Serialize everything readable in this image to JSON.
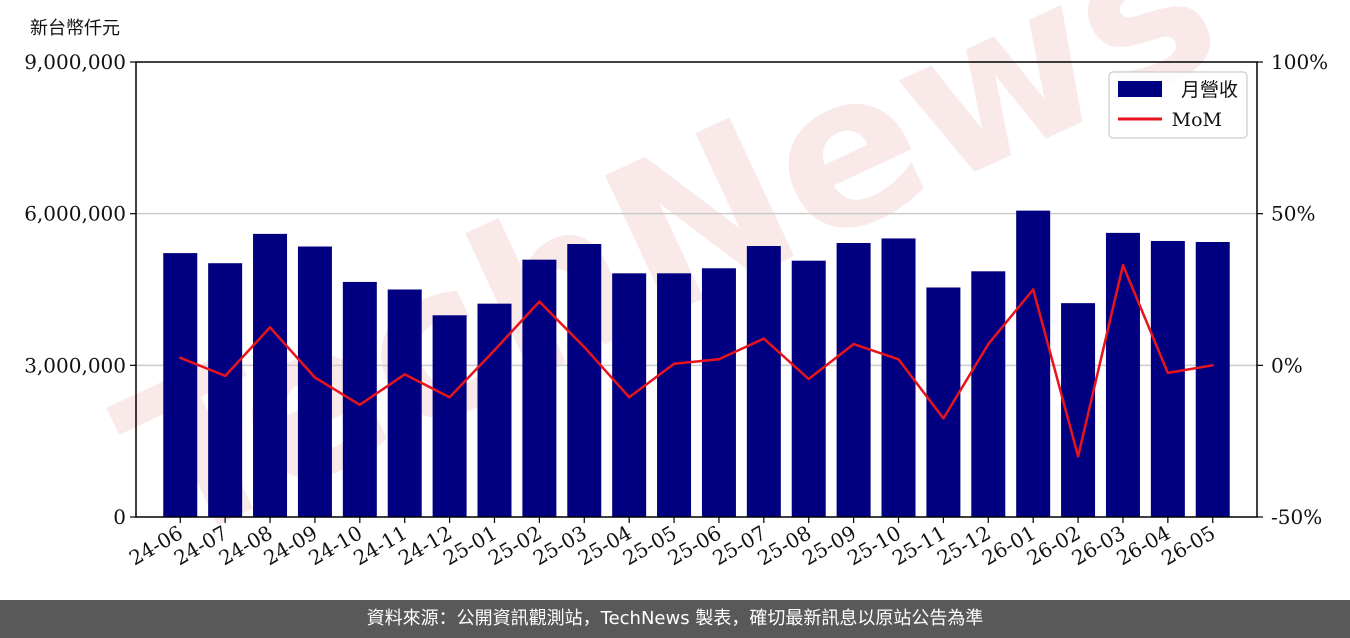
{
  "chart_data": {
    "type": "bar",
    "unit_label": "新台幣仟元",
    "categories": [
      "24-06",
      "24-07",
      "24-08",
      "24-09",
      "24-10",
      "24-11",
      "24-12",
      "25-01",
      "25-02",
      "25-03",
      "25-04",
      "25-05",
      "25-06",
      "25-07",
      "25-08",
      "25-09",
      "25-10",
      "25-11",
      "25-12",
      "26-01",
      "26-02",
      "26-03",
      "26-04",
      "26-05"
    ],
    "series": [
      {
        "name": "月營收",
        "axis": "left",
        "type": "bar",
        "color": "#000080",
        "values": [
          5220000,
          5020000,
          5600000,
          5350000,
          4650000,
          4500000,
          3990000,
          4220000,
          5090000,
          5400000,
          4820000,
          4820000,
          4920000,
          5360000,
          5070000,
          5420000,
          5510000,
          4540000,
          4860000,
          6060000,
          4230000,
          5620000,
          5460000,
          5440000
        ]
      },
      {
        "name": "MoM",
        "axis": "right",
        "type": "line",
        "color": "#e8141c",
        "values": [
          2.5,
          -3.5,
          12.5,
          -4,
          -13,
          -3,
          -10.5,
          5,
          21,
          6,
          -10.5,
          0.5,
          2,
          8.8,
          -4.5,
          7,
          2,
          -17.5,
          7,
          25,
          -30,
          33,
          -2.5,
          0
        ]
      }
    ],
    "y_left": {
      "min": 0,
      "max": 9000000,
      "ticks": [
        "0",
        "3,000,000",
        "6,000,000",
        "9,000,000"
      ],
      "tick_values": [
        0,
        3000000,
        6000000,
        9000000
      ]
    },
    "y_right": {
      "min": -50,
      "max": 100,
      "ticks": [
        "-50%",
        "0%",
        "50%",
        "100%"
      ],
      "tick_values": [
        -50,
        0,
        50,
        100
      ]
    },
    "grid": "horizontal",
    "legend": "top-right"
  },
  "watermark": "TechNews",
  "footer": {
    "source_text": "資料來源：公開資訊觀測站，TechNews 製表，確切最新訊息以原站公告為準"
  }
}
